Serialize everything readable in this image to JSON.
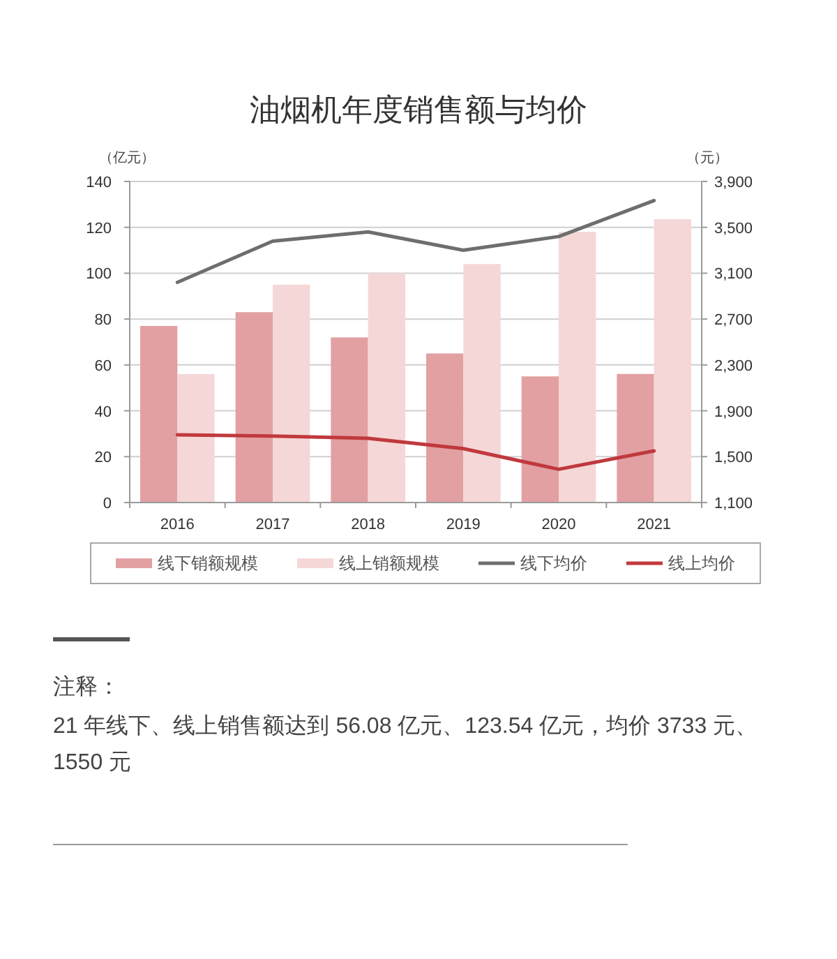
{
  "chart_data": {
    "type": "bar",
    "title": "油烟机年度销售额与均价",
    "ylabel": "（亿元）",
    "y2label": "（元）",
    "categories": [
      "2016",
      "2017",
      "2018",
      "2019",
      "2020",
      "2021"
    ],
    "series": [
      {
        "name": "线下销额规模",
        "color": "#e2a0a3",
        "values": [
          77,
          83,
          72,
          65,
          55,
          56.08
        ]
      },
      {
        "name": "线上销额规模",
        "color": "#f5d7d7",
        "values": [
          56,
          95,
          100,
          104,
          118,
          123.54
        ]
      },
      {
        "name": "线下均价",
        "type": "line",
        "axis": "y2",
        "color": "#6e6e6e",
        "values": [
          3020,
          3380,
          3460,
          3300,
          3420,
          3733
        ]
      },
      {
        "name": "线上均价",
        "type": "line",
        "axis": "y2",
        "color": "#c0393d",
        "values": [
          1690,
          1680,
          1660,
          1570,
          1390,
          1550
        ]
      }
    ],
    "ylim": [
      0,
      140
    ],
    "yticks": [
      0,
      20,
      40,
      60,
      80,
      100,
      120,
      140
    ],
    "y2lim": [
      1100,
      3900
    ],
    "y2ticks": [
      {
        "value": 1100,
        "label": "1,100"
      },
      {
        "value": 1500,
        "label": "1,500"
      },
      {
        "value": 1900,
        "label": "1,900"
      },
      {
        "value": 2300,
        "label": "2,300"
      },
      {
        "value": 2700,
        "label": "2,700"
      },
      {
        "value": 3100,
        "label": "3,100"
      },
      {
        "value": 3500,
        "label": "3,500"
      },
      {
        "value": 3900,
        "label": "3,900"
      }
    ],
    "grid": "y",
    "legend": "bottom",
    "annotations": [
      "注释：",
      "21 年线下、线上销售额达到 56.08 亿元、123.54 亿元，均价 3733 元、1550 元"
    ]
  }
}
